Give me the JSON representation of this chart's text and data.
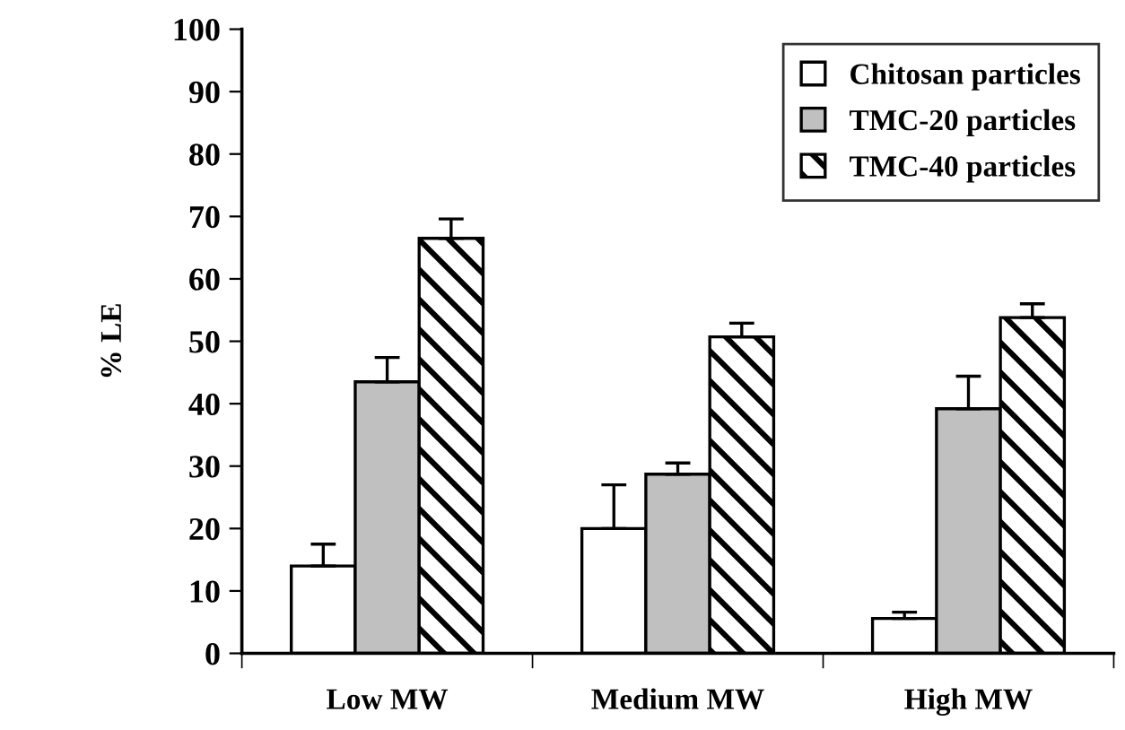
{
  "chart_data": {
    "type": "bar",
    "ylabel": "% LE",
    "categories": [
      "Low MW",
      "Medium MW",
      "High MW"
    ],
    "series": [
      {
        "name": "Chitosan particles",
        "color": "#ffffff",
        "values": [
          14,
          20,
          5.6
        ],
        "errors": [
          [
            14,
            17.5
          ],
          [
            20,
            27
          ],
          [
            5.6,
            6.6
          ]
        ]
      },
      {
        "name": "TMC-20 particles",
        "color": "#c0c0c0",
        "values": [
          43.5,
          28.7,
          39.2
        ],
        "errors": [
          [
            43.5,
            47.4
          ],
          [
            28.7,
            30.5
          ],
          [
            39.2,
            44.4
          ]
        ]
      },
      {
        "name": "TMC-40 particles",
        "color": "#000000",
        "values": [
          66.5,
          50.7,
          53.8
        ],
        "errors": [
          [
            66.5,
            69.6
          ],
          [
            50.7,
            52.9
          ],
          [
            53.8,
            56
          ]
        ]
      }
    ],
    "ylim": [
      0,
      100
    ],
    "yticks": [
      0,
      10,
      20,
      30,
      40,
      50,
      60,
      70,
      80,
      90,
      100
    ],
    "grid": false,
    "legend": "top right"
  }
}
